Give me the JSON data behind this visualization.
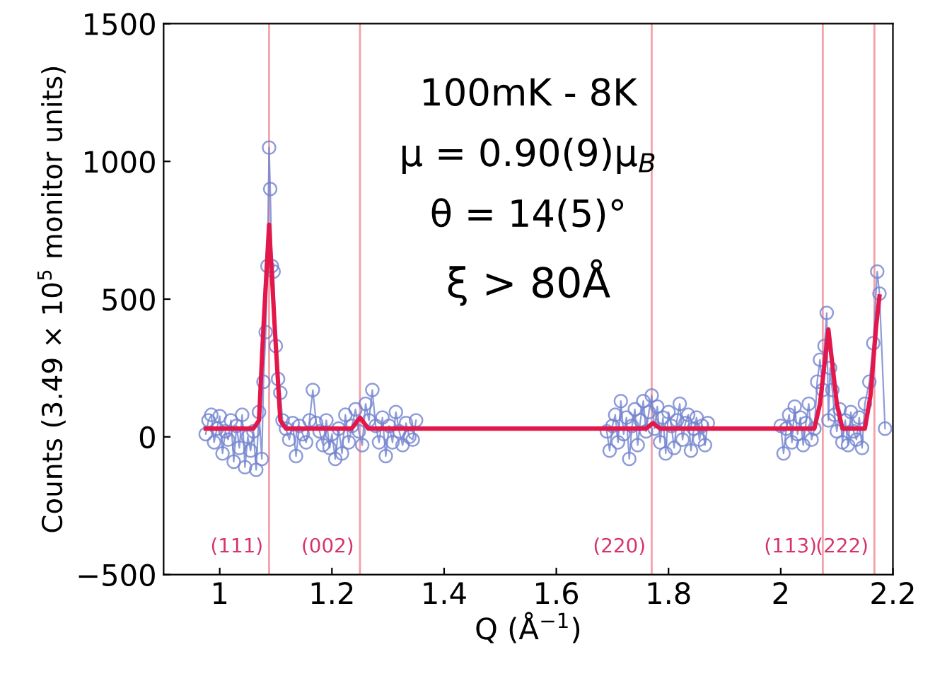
{
  "chart_data": {
    "type": "line",
    "xlabel": "Q (Å$^{−1}$)",
    "ylabel": "Counts (3.49 × 10$^{5}$ monitor units)",
    "xlim": [
      0.9,
      2.2
    ],
    "ylim": [
      -500,
      1500
    ],
    "xticks": [
      1,
      1.2,
      1.4,
      1.6,
      1.8,
      2,
      2.2
    ],
    "yticks": [
      {
        "value": -500,
        "label": "−500"
      },
      0,
      500,
      1000,
      1500
    ],
    "grid": false,
    "legend": false,
    "annotations": [
      "100mK - 8K",
      "μ = 0.90(9)μ$_{B}$",
      "θ = 14(5)°",
      "ξ > 80Å",
      {
        "text": "(111)",
        "x": 1.088,
        "y": -400
      },
      {
        "text": "(002)",
        "x": 1.25,
        "y": -400
      },
      {
        "text": "(220)",
        "x": 1.77,
        "y": -400
      },
      {
        "text": "(113)",
        "x": 2.075,
        "y": -400
      },
      {
        "text": "(222)",
        "x": 2.167,
        "y": -400
      }
    ],
    "ref_lines": [
      {
        "axis": "x",
        "value": 1.088,
        "color": "#f4a0a8"
      },
      {
        "axis": "x",
        "value": 1.25,
        "color": "#f4a0a8"
      },
      {
        "axis": "x",
        "value": 1.77,
        "color": "#f4a0a8"
      },
      {
        "axis": "x",
        "value": 2.075,
        "color": "#f4a0a8"
      },
      {
        "axis": "x",
        "value": 2.167,
        "color": "#f4a0a8"
      }
    ],
    "series": [
      {
        "color": "#7283cf",
        "marker": "circle",
        "line_style": "solid",
        "x": [
          0.975,
          0.98,
          0.985,
          0.99,
          0.995,
          1.0,
          1.005,
          1.01,
          1.015,
          1.02,
          1.025,
          1.03,
          1.035,
          1.04,
          1.045,
          1.05,
          1.055,
          1.06,
          1.065,
          1.07,
          1.075,
          1.078,
          1.082,
          1.085,
          1.088,
          1.09,
          1.093,
          1.096,
          1.1,
          1.104,
          1.108,
          1.112,
          1.118,
          1.124,
          1.13,
          1.136,
          1.142,
          1.148,
          1.154,
          1.16,
          1.166,
          1.172,
          1.178,
          1.184,
          1.19,
          1.196,
          1.2,
          1.206,
          1.212,
          1.218,
          1.224,
          1.23,
          1.236,
          1.242,
          1.248,
          1.254,
          1.26,
          1.266,
          1.272,
          1.278,
          1.284,
          1.29,
          1.296,
          1.302,
          1.308,
          1.314,
          1.32,
          1.326,
          1.332,
          1.338,
          1.344,
          1.35,
          null,
          1.69,
          1.695,
          1.7,
          1.705,
          1.71,
          1.715,
          1.72,
          1.725,
          1.73,
          1.735,
          1.74,
          1.745,
          1.75,
          1.755,
          1.76,
          1.765,
          1.77,
          1.775,
          1.78,
          1.785,
          1.79,
          1.795,
          1.8,
          1.805,
          1.81,
          1.815,
          1.82,
          1.825,
          1.83,
          1.835,
          1.84,
          1.845,
          1.85,
          1.855,
          1.86,
          1.865,
          1.87,
          null,
          2.0,
          2.005,
          2.01,
          2.015,
          2.02,
          2.025,
          2.03,
          2.035,
          2.04,
          2.045,
          2.05,
          2.055,
          2.06,
          2.065,
          2.07,
          2.075,
          2.078,
          2.082,
          2.085,
          2.088,
          2.092,
          2.096,
          2.1,
          2.105,
          2.11,
          2.115,
          2.12,
          2.125,
          2.13,
          2.135,
          2.14,
          2.145,
          2.15,
          2.158,
          2.165,
          2.172,
          2.176,
          2.186
        ],
        "values": [
          10,
          60,
          80,
          -20,
          30,
          75,
          -60,
          20,
          -10,
          60,
          -90,
          40,
          -40,
          80,
          -110,
          0,
          -50,
          20,
          -120,
          90,
          -80,
          200,
          380,
          620,
          1050,
          900,
          620,
          600,
          330,
          210,
          160,
          60,
          30,
          -10,
          50,
          -70,
          40,
          10,
          -20,
          60,
          170,
          50,
          20,
          -30,
          60,
          -40,
          10,
          -80,
          30,
          -60,
          80,
          -20,
          40,
          100,
          20,
          -30,
          120,
          60,
          170,
          40,
          -20,
          70,
          -70,
          40,
          -20,
          90,
          20,
          -30,
          50,
          0,
          -10,
          60,
          null,
          20,
          -50,
          40,
          80,
          -20,
          130,
          10,
          70,
          -80,
          40,
          100,
          -30,
          60,
          130,
          20,
          90,
          150,
          30,
          110,
          -20,
          70,
          -60,
          90,
          40,
          -40,
          60,
          120,
          -10,
          50,
          80,
          -50,
          30,
          70,
          -10,
          40,
          -30,
          50,
          null,
          40,
          -60,
          30,
          80,
          -20,
          110,
          10,
          70,
          -30,
          50,
          120,
          -10,
          30,
          200,
          280,
          170,
          330,
          450,
          60,
          250,
          170,
          80,
          20,
          100,
          -20,
          60,
          -30,
          90,
          20,
          -10,
          70,
          -40,
          120,
          200,
          340,
          600,
          520,
          30
        ]
      },
      {
        "color": "#e3174a",
        "marker": "none",
        "line_style": "solid",
        "x": [
          0.975,
          1.06,
          1.07,
          1.078,
          1.088,
          1.098,
          1.108,
          1.118,
          1.235,
          1.25,
          1.265,
          1.76,
          1.772,
          1.785,
          2.06,
          2.07,
          2.085,
          2.1,
          2.11,
          2.15,
          2.16,
          2.17,
          2.176
        ],
        "values": [
          30,
          30,
          60,
          400,
          770,
          400,
          60,
          30,
          30,
          70,
          30,
          30,
          50,
          30,
          30,
          120,
          390,
          120,
          30,
          30,
          150,
          400,
          510
        ]
      }
    ]
  }
}
